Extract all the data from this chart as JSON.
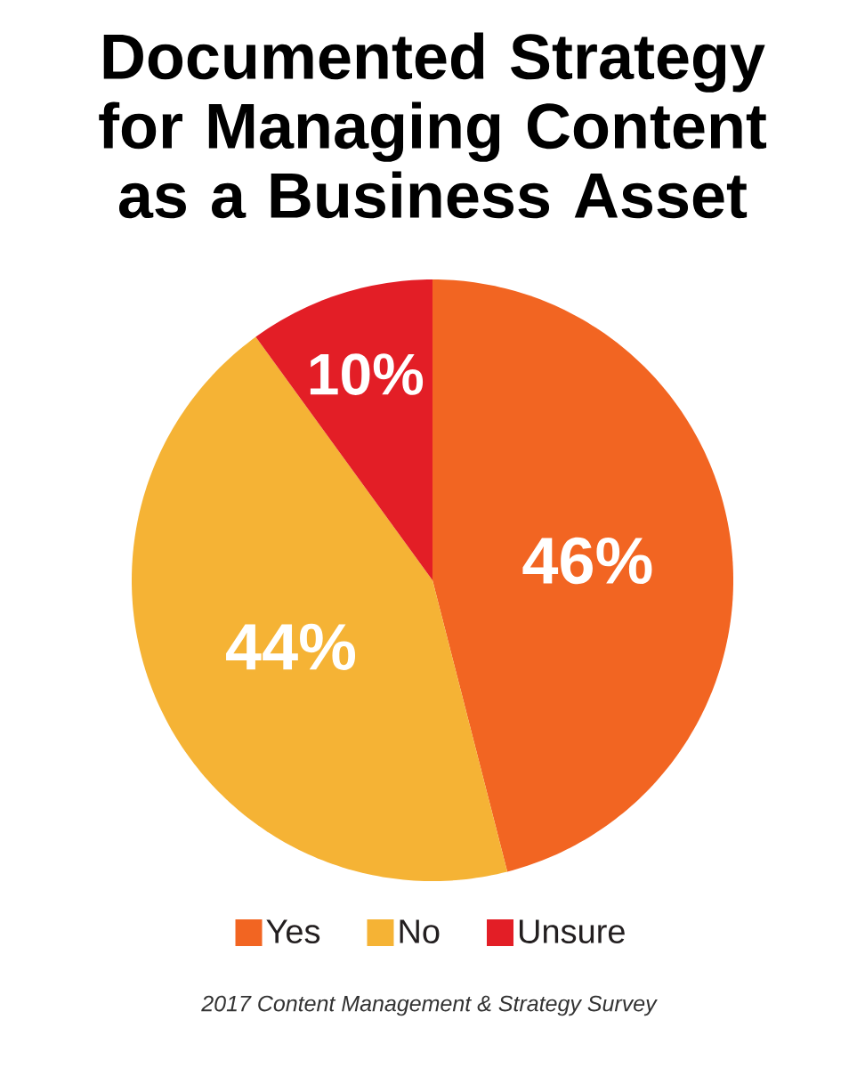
{
  "chart_data": {
    "type": "pie",
    "title": "Documented Strategy for Managing Content as a Business Asset",
    "categories": [
      "Yes",
      "No",
      "Unsure"
    ],
    "values": [
      46,
      44,
      10
    ],
    "colors": [
      "#f26522",
      "#f5b335",
      "#e31e26"
    ],
    "value_labels": [
      "46%",
      "44%",
      "10%"
    ],
    "legend": "bottom",
    "annotations": [
      "2017 Content Management & Strategy Survey"
    ]
  }
}
